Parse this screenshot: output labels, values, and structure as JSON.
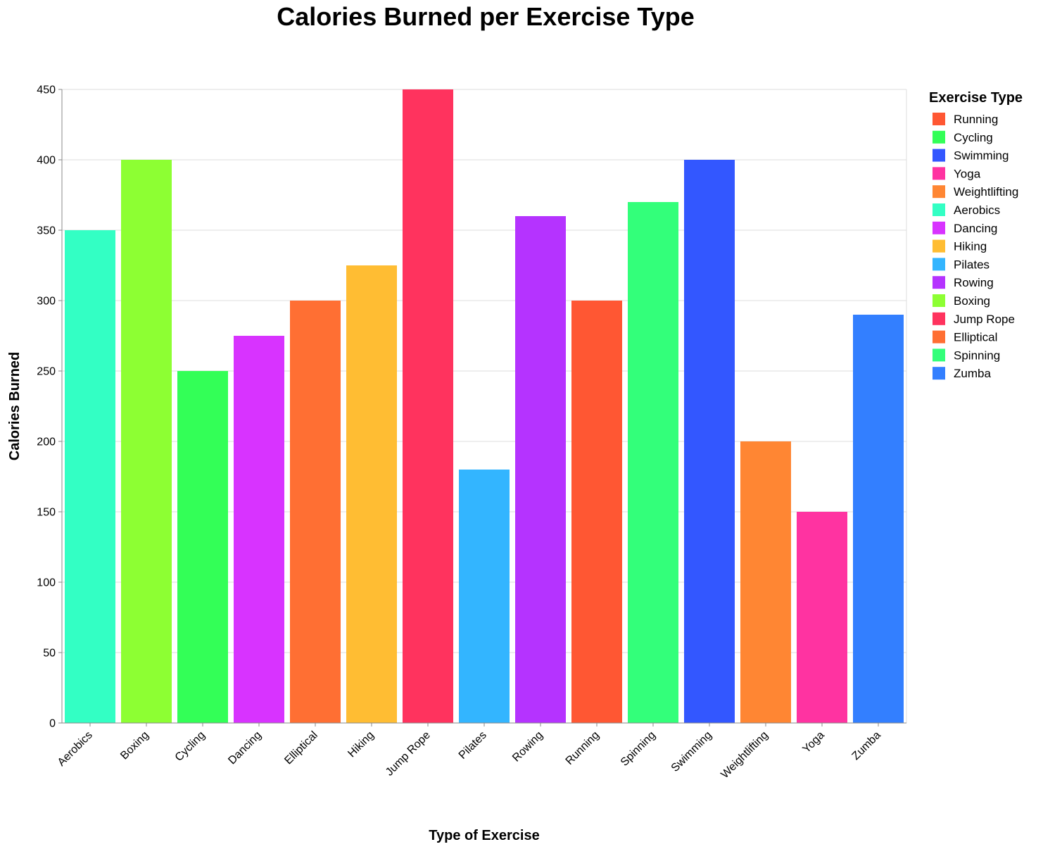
{
  "chart_data": {
    "type": "bar",
    "title": "Calories Burned per Exercise Type",
    "xlabel": "Type of Exercise",
    "ylabel": "Calories Burned",
    "ylim": [
      0,
      450
    ],
    "yticks": [
      0,
      50,
      100,
      150,
      200,
      250,
      300,
      350,
      400,
      450
    ],
    "grid": true,
    "categories": [
      "Aerobics",
      "Boxing",
      "Cycling",
      "Dancing",
      "Elliptical",
      "Hiking",
      "Jump Rope",
      "Pilates",
      "Rowing",
      "Running",
      "Spinning",
      "Swimming",
      "Weightlifting",
      "Yoga",
      "Zumba"
    ],
    "values": [
      350,
      400,
      250,
      275,
      300,
      325,
      450,
      180,
      360,
      300,
      370,
      400,
      200,
      150,
      290
    ],
    "legend": {
      "title": "Exercise Type",
      "placement": "right",
      "entries": [
        "Running",
        "Cycling",
        "Swimming",
        "Yoga",
        "Weightlifting",
        "Aerobics",
        "Dancing",
        "Hiking",
        "Pilates",
        "Rowing",
        "Boxing",
        "Jump Rope",
        "Elliptical",
        "Spinning",
        "Zumba"
      ]
    },
    "colors": {
      "Running": "#FF5733",
      "Cycling": "#33FF57",
      "Swimming": "#3357FF",
      "Yoga": "#FF33A1",
      "Weightlifting": "#FF8633",
      "Aerobics": "#33FFC4",
      "Dancing": "#D833FF",
      "Hiking": "#FFBD33",
      "Pilates": "#33B5FF",
      "Rowing": "#B533FF",
      "Boxing": "#8DFF33",
      "Jump Rope": "#FF335E",
      "Elliptical": "#FF6F33",
      "Spinning": "#33FF7A",
      "Zumba": "#337FFF"
    }
  }
}
